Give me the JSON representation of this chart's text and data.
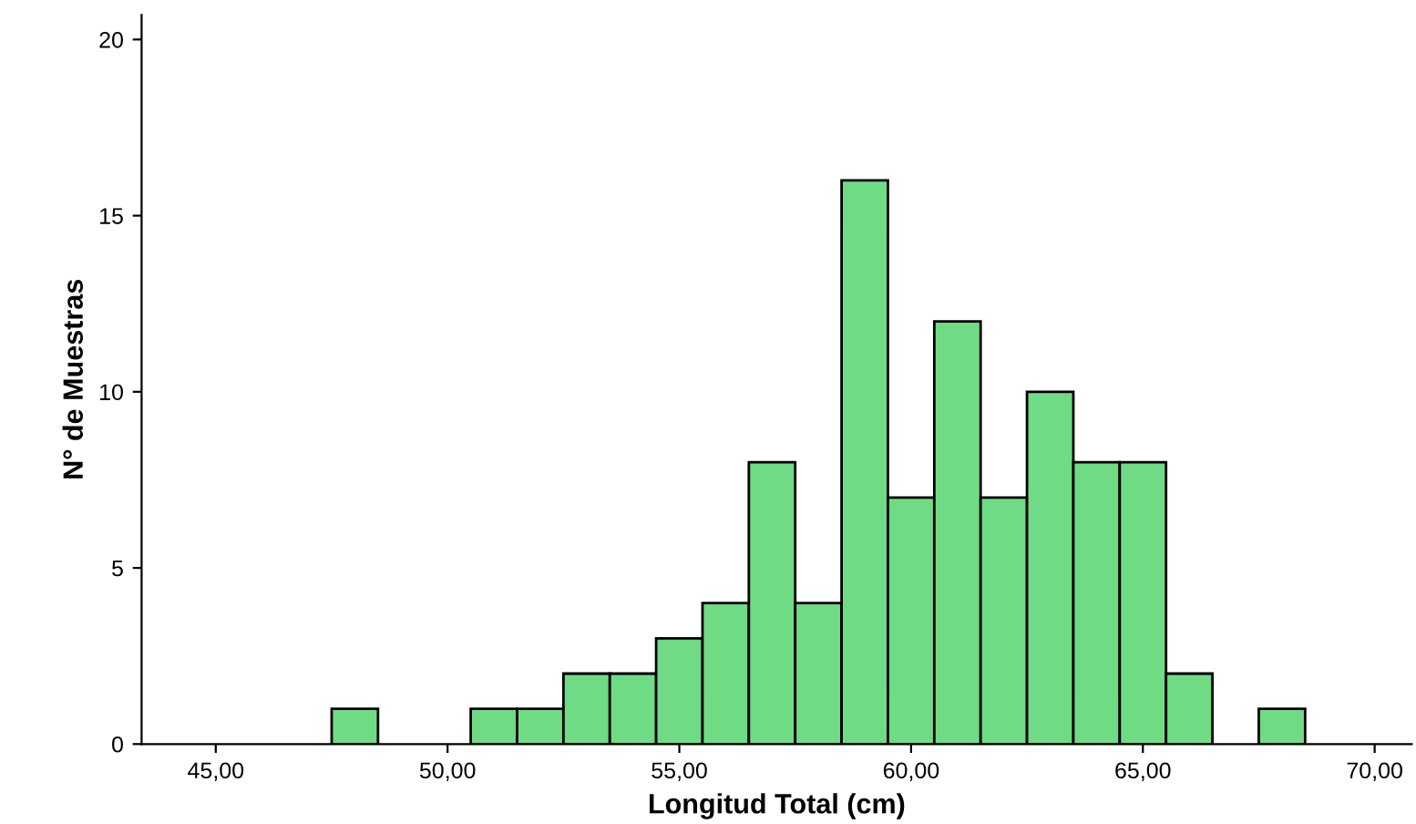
{
  "chart_data": {
    "type": "histogram",
    "xlabel": "Longitud Total (cm)",
    "ylabel": "N° de Muestras",
    "bins": [
      47.5,
      48.5,
      49.5,
      50.5,
      51.5,
      52.5,
      53.5,
      54.5,
      55.5,
      56.5,
      57.5,
      58.5,
      59.5,
      60.5,
      61.5,
      62.5,
      63.5,
      64.5,
      65.5,
      66.5,
      67.5,
      68.5
    ],
    "values": [
      1,
      0,
      0,
      1,
      1,
      2,
      2,
      3,
      4,
      8,
      4,
      16,
      7,
      12,
      7,
      10,
      8,
      8,
      2,
      0,
      1
    ],
    "color": "#70db85",
    "xlim": [
      43.4,
      70.8
    ],
    "xticks": [
      {
        "value": 45,
        "label": "45,00"
      },
      {
        "value": 50,
        "label": "50,00"
      },
      {
        "value": 55,
        "label": "55,00"
      },
      {
        "value": 60,
        "label": "60,00"
      },
      {
        "value": 65,
        "label": "65,00"
      },
      {
        "value": 70,
        "label": "70,00"
      }
    ],
    "ylim": [
      0,
      20.7
    ],
    "yticks": [
      0,
      5,
      10,
      15,
      20
    ],
    "grid": false
  }
}
